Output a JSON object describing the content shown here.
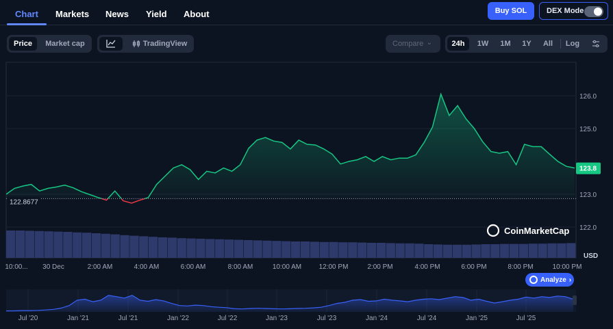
{
  "nav": {
    "tabs": [
      "Chart",
      "Markets",
      "News",
      "Yield",
      "About"
    ],
    "buy_label": "Buy SOL",
    "dex_label": "DEX Mode"
  },
  "toolbar": {
    "price_label": "Price",
    "marketcap_label": "Market cap",
    "tradingview_label": "TradingView",
    "compare_label": "Compare",
    "ranges": [
      "24h",
      "1W",
      "1M",
      "1Y",
      "All"
    ],
    "log_label": "Log"
  },
  "colors": {
    "up": "#16c784",
    "down": "#ea3943",
    "accent": "#3861fb",
    "volume": "#2d3a6b"
  },
  "chart_data": {
    "type": "line",
    "y_ticks": [
      "126.0",
      "125.0",
      "123.0",
      "122.0"
    ],
    "ylim": [
      121.7,
      126.65
    ],
    "baseline_label": "122.8677",
    "baseline": 122.8677,
    "current_label": "123.8",
    "unit_label": "USD",
    "watermark": "CoinMarketCap",
    "analyze_label": "Analyze",
    "x_labels": [
      "10:00...",
      "30 Dec",
      "2:00 AM",
      "4:00 AM",
      "6:00 AM",
      "8:00 AM",
      "10:00 AM",
      "12:00 PM",
      "2:00 PM",
      "4:00 PM",
      "6:00 PM",
      "8:00 PM",
      "10:00 PM"
    ],
    "price_series": [
      [
        0,
        123.0
      ],
      [
        0.25,
        123.18
      ],
      [
        0.5,
        123.25
      ],
      [
        0.75,
        123.3
      ],
      [
        1.0,
        123.1
      ],
      [
        1.25,
        123.18
      ],
      [
        1.5,
        123.22
      ],
      [
        1.75,
        123.28
      ],
      [
        2.0,
        123.2
      ],
      [
        2.25,
        123.08
      ],
      [
        2.5,
        122.99
      ],
      [
        2.75,
        122.9
      ],
      [
        3.0,
        122.82
      ],
      [
        3.25,
        123.1
      ],
      [
        3.5,
        122.8
      ],
      [
        3.75,
        122.73
      ],
      [
        4.0,
        122.82
      ],
      [
        4.25,
        122.9
      ],
      [
        4.5,
        123.3
      ],
      [
        4.75,
        123.55
      ],
      [
        5.0,
        123.8
      ],
      [
        5.25,
        123.9
      ],
      [
        5.5,
        123.75
      ],
      [
        5.75,
        123.45
      ],
      [
        6.0,
        123.7
      ],
      [
        6.25,
        123.65
      ],
      [
        6.5,
        123.8
      ],
      [
        6.75,
        123.7
      ],
      [
        7.0,
        123.9
      ],
      [
        7.25,
        124.4
      ],
      [
        7.5,
        124.65
      ],
      [
        7.75,
        124.73
      ],
      [
        8.0,
        124.62
      ],
      [
        8.25,
        124.58
      ],
      [
        8.5,
        124.38
      ],
      [
        8.75,
        124.65
      ],
      [
        9.0,
        124.52
      ],
      [
        9.25,
        124.5
      ],
      [
        9.5,
        124.38
      ],
      [
        9.75,
        124.22
      ],
      [
        10.0,
        123.92
      ],
      [
        10.25,
        124.0
      ],
      [
        10.5,
        124.05
      ],
      [
        10.75,
        124.15
      ],
      [
        11.0,
        124.0
      ],
      [
        11.25,
        124.15
      ],
      [
        11.5,
        124.05
      ],
      [
        11.75,
        124.1
      ],
      [
        12.0,
        124.1
      ],
      [
        12.25,
        124.2
      ],
      [
        12.5,
        124.58
      ],
      [
        12.75,
        125.05
      ],
      [
        13.0,
        126.05
      ],
      [
        13.25,
        125.4
      ],
      [
        13.5,
        125.7
      ],
      [
        13.75,
        125.3
      ],
      [
        14.0,
        125.0
      ],
      [
        14.25,
        124.6
      ],
      [
        14.5,
        124.3
      ],
      [
        14.75,
        124.25
      ],
      [
        15.0,
        124.3
      ],
      [
        15.25,
        123.9
      ],
      [
        15.5,
        124.52
      ],
      [
        15.75,
        124.45
      ],
      [
        16.0,
        124.45
      ],
      [
        16.25,
        124.22
      ],
      [
        16.5,
        124.0
      ],
      [
        16.75,
        123.85
      ],
      [
        16.9,
        123.82
      ],
      [
        17.0,
        123.8
      ]
    ],
    "volume_series": [
      1,
      1,
      0.99,
      0.98,
      0.97,
      0.96,
      0.95,
      0.93,
      0.92,
      0.9,
      0.88,
      0.86,
      0.83,
      0.81,
      0.79,
      0.77,
      0.75,
      0.74,
      0.72,
      0.71,
      0.7,
      0.69,
      0.68,
      0.67,
      0.66,
      0.65,
      0.64,
      0.63,
      0.62,
      0.61,
      0.6,
      0.6,
      0.59,
      0.58,
      0.58,
      0.57,
      0.57,
      0.56,
      0.55,
      0.55,
      0.54,
      0.53,
      0.53,
      0.52,
      0.5,
      0.49,
      0.48,
      0.48,
      0.48,
      0.49,
      0.5,
      0.5,
      0.51,
      0.51,
      0.51,
      0.52,
      0.52,
      0.53,
      0.53,
      0.54
    ],
    "overview_x_labels": [
      "Jul '20",
      "Jan '21",
      "Jul '21",
      "Jan '22",
      "Jul '22",
      "Jan '23",
      "Jul '23",
      "Jan '24",
      "Jul '24",
      "Jan '25",
      "Jul '25"
    ],
    "overview_series": [
      0.05,
      0.05,
      0.06,
      0.06,
      0.07,
      0.09,
      0.12,
      0.18,
      0.3,
      0.55,
      0.6,
      0.48,
      0.55,
      0.78,
      0.72,
      0.65,
      0.78,
      0.55,
      0.5,
      0.58,
      0.52,
      0.4,
      0.3,
      0.28,
      0.32,
      0.3,
      0.25,
      0.22,
      0.2,
      0.15,
      0.14,
      0.16,
      0.17,
      0.16,
      0.15,
      0.14,
      0.15,
      0.16,
      0.17,
      0.19,
      0.22,
      0.3,
      0.4,
      0.45,
      0.55,
      0.58,
      0.5,
      0.52,
      0.6,
      0.55,
      0.52,
      0.48,
      0.55,
      0.6,
      0.62,
      0.58,
      0.65,
      0.72,
      0.68,
      0.55,
      0.6,
      0.5,
      0.42,
      0.48,
      0.55,
      0.6,
      0.7,
      0.65,
      0.72,
      0.68,
      0.75,
      0.72,
      0.6
    ]
  }
}
